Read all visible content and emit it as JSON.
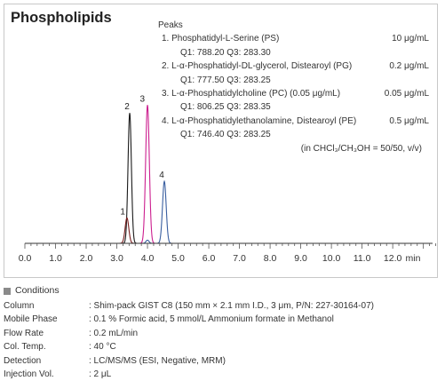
{
  "title": "Phospholipids",
  "peaks_heading": "Peaks",
  "peaks": [
    {
      "name": "1. Phosphatidyl-L-Serine (PS)",
      "conc": "10 μg/mL",
      "transition": "Q1: 788.20  Q3: 283.30"
    },
    {
      "name": "2. L-α-Phosphatidyl-DL-glycerol, Distearoyl (PG)",
      "conc": "0.2 μg/mL",
      "transition": "Q1: 777.50  Q3: 283.25"
    },
    {
      "name": "3. L-α-Phosphatidylcholine (PC) (0.05 μg/mL)",
      "conc": "0.05 μg/mL",
      "transition": "Q1: 806.25  Q3: 283.35"
    },
    {
      "name": "4. L-α-Phosphatidylethanolamine, Distearoyl (PE)",
      "conc": "0.5 μg/mL",
      "transition": "Q1: 746.40  Q3: 283.25"
    }
  ],
  "solvent_note": "(in CHCl₃/CH₃OH = 50/50, v/v)",
  "chart_data": {
    "type": "line",
    "x_unit": "min",
    "x_ticks": [
      "0.0",
      "1.0",
      "2.0",
      "3.0",
      "4.0",
      "5.0",
      "6.0",
      "7.0",
      "8.0",
      "9.0",
      "10.0",
      "11.0",
      "12.0"
    ],
    "xlim": [
      0,
      13.3
    ],
    "ylim": [
      0,
      1
    ],
    "grid": false,
    "series": [
      {
        "color": "#1a1a1a",
        "peaks": [
          {
            "t": 3.42,
            "h": 0.82,
            "w": 0.055
          }
        ]
      },
      {
        "color": "#7a1f1f",
        "peaks": [
          {
            "t": 3.33,
            "h": 0.16,
            "w": 0.06
          }
        ]
      },
      {
        "color": "#cc1f8f",
        "peaks": [
          {
            "t": 4.0,
            "h": 0.87,
            "w": 0.06
          }
        ]
      },
      {
        "color": "#3a5fa0",
        "peaks": [
          {
            "t": 4.55,
            "h": 0.39,
            "w": 0.06
          },
          {
            "t": 4.0,
            "h": 0.02,
            "w": 0.05
          }
        ]
      }
    ],
    "peak_labels": [
      {
        "label": "1",
        "t": 3.28,
        "h": 0.16
      },
      {
        "label": "2",
        "t": 3.42,
        "h": 0.82
      },
      {
        "label": "3",
        "t": 3.92,
        "h": 0.87
      },
      {
        "label": "4",
        "t": 4.55,
        "h": 0.39
      }
    ]
  },
  "conditions": {
    "heading": "Conditions",
    "rows": [
      {
        "label": "Column",
        "value": ": Shim-pack GIST C8 (150 mm × 2.1 mm I.D., 3 μm, P/N: 227-30164-07)"
      },
      {
        "label": "Mobile Phase",
        "value": ": 0.1 % Formic acid, 5 mmol/L Ammonium formate in Methanol"
      },
      {
        "label": "Flow Rate",
        "value": ": 0.2 mL/min"
      },
      {
        "label": "Col. Temp.",
        "value": ": 40 °C"
      },
      {
        "label": "Detection",
        "value": ": LC/MS/MS (ESI, Negative, MRM)"
      },
      {
        "label": "Injection Vol.",
        "value": ": 2 μL"
      }
    ]
  }
}
